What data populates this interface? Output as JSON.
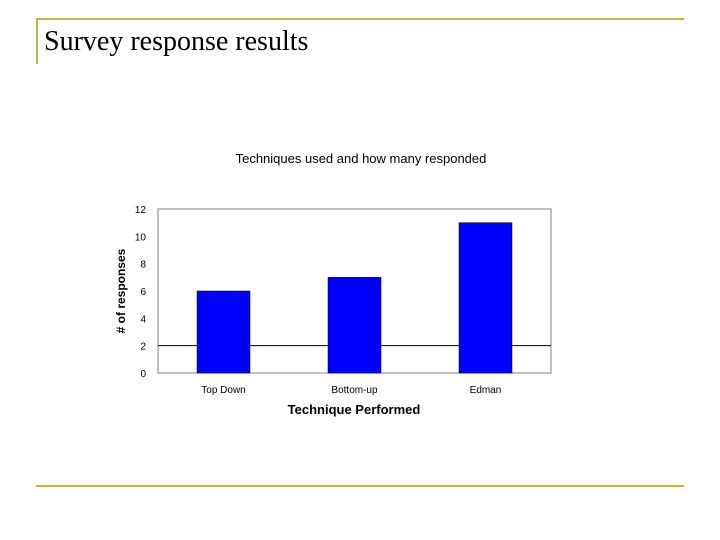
{
  "slide": {
    "title": "Survey response results"
  },
  "colors": {
    "accent_line": "#c8b33c",
    "bar_fill": "#0000ff"
  },
  "chart_data": {
    "type": "bar",
    "title": "Techniques used and how many responded",
    "xlabel": "Technique Performed",
    "ylabel": "# of responses",
    "categories": [
      "Top Down",
      "Bottom-up",
      "Edman"
    ],
    "values": [
      6,
      7,
      11
    ],
    "ylim": [
      0,
      12
    ],
    "yticks": [
      0,
      2,
      4,
      6,
      8,
      10,
      12
    ],
    "grid": "horizontal line at 2",
    "legend": "none"
  }
}
